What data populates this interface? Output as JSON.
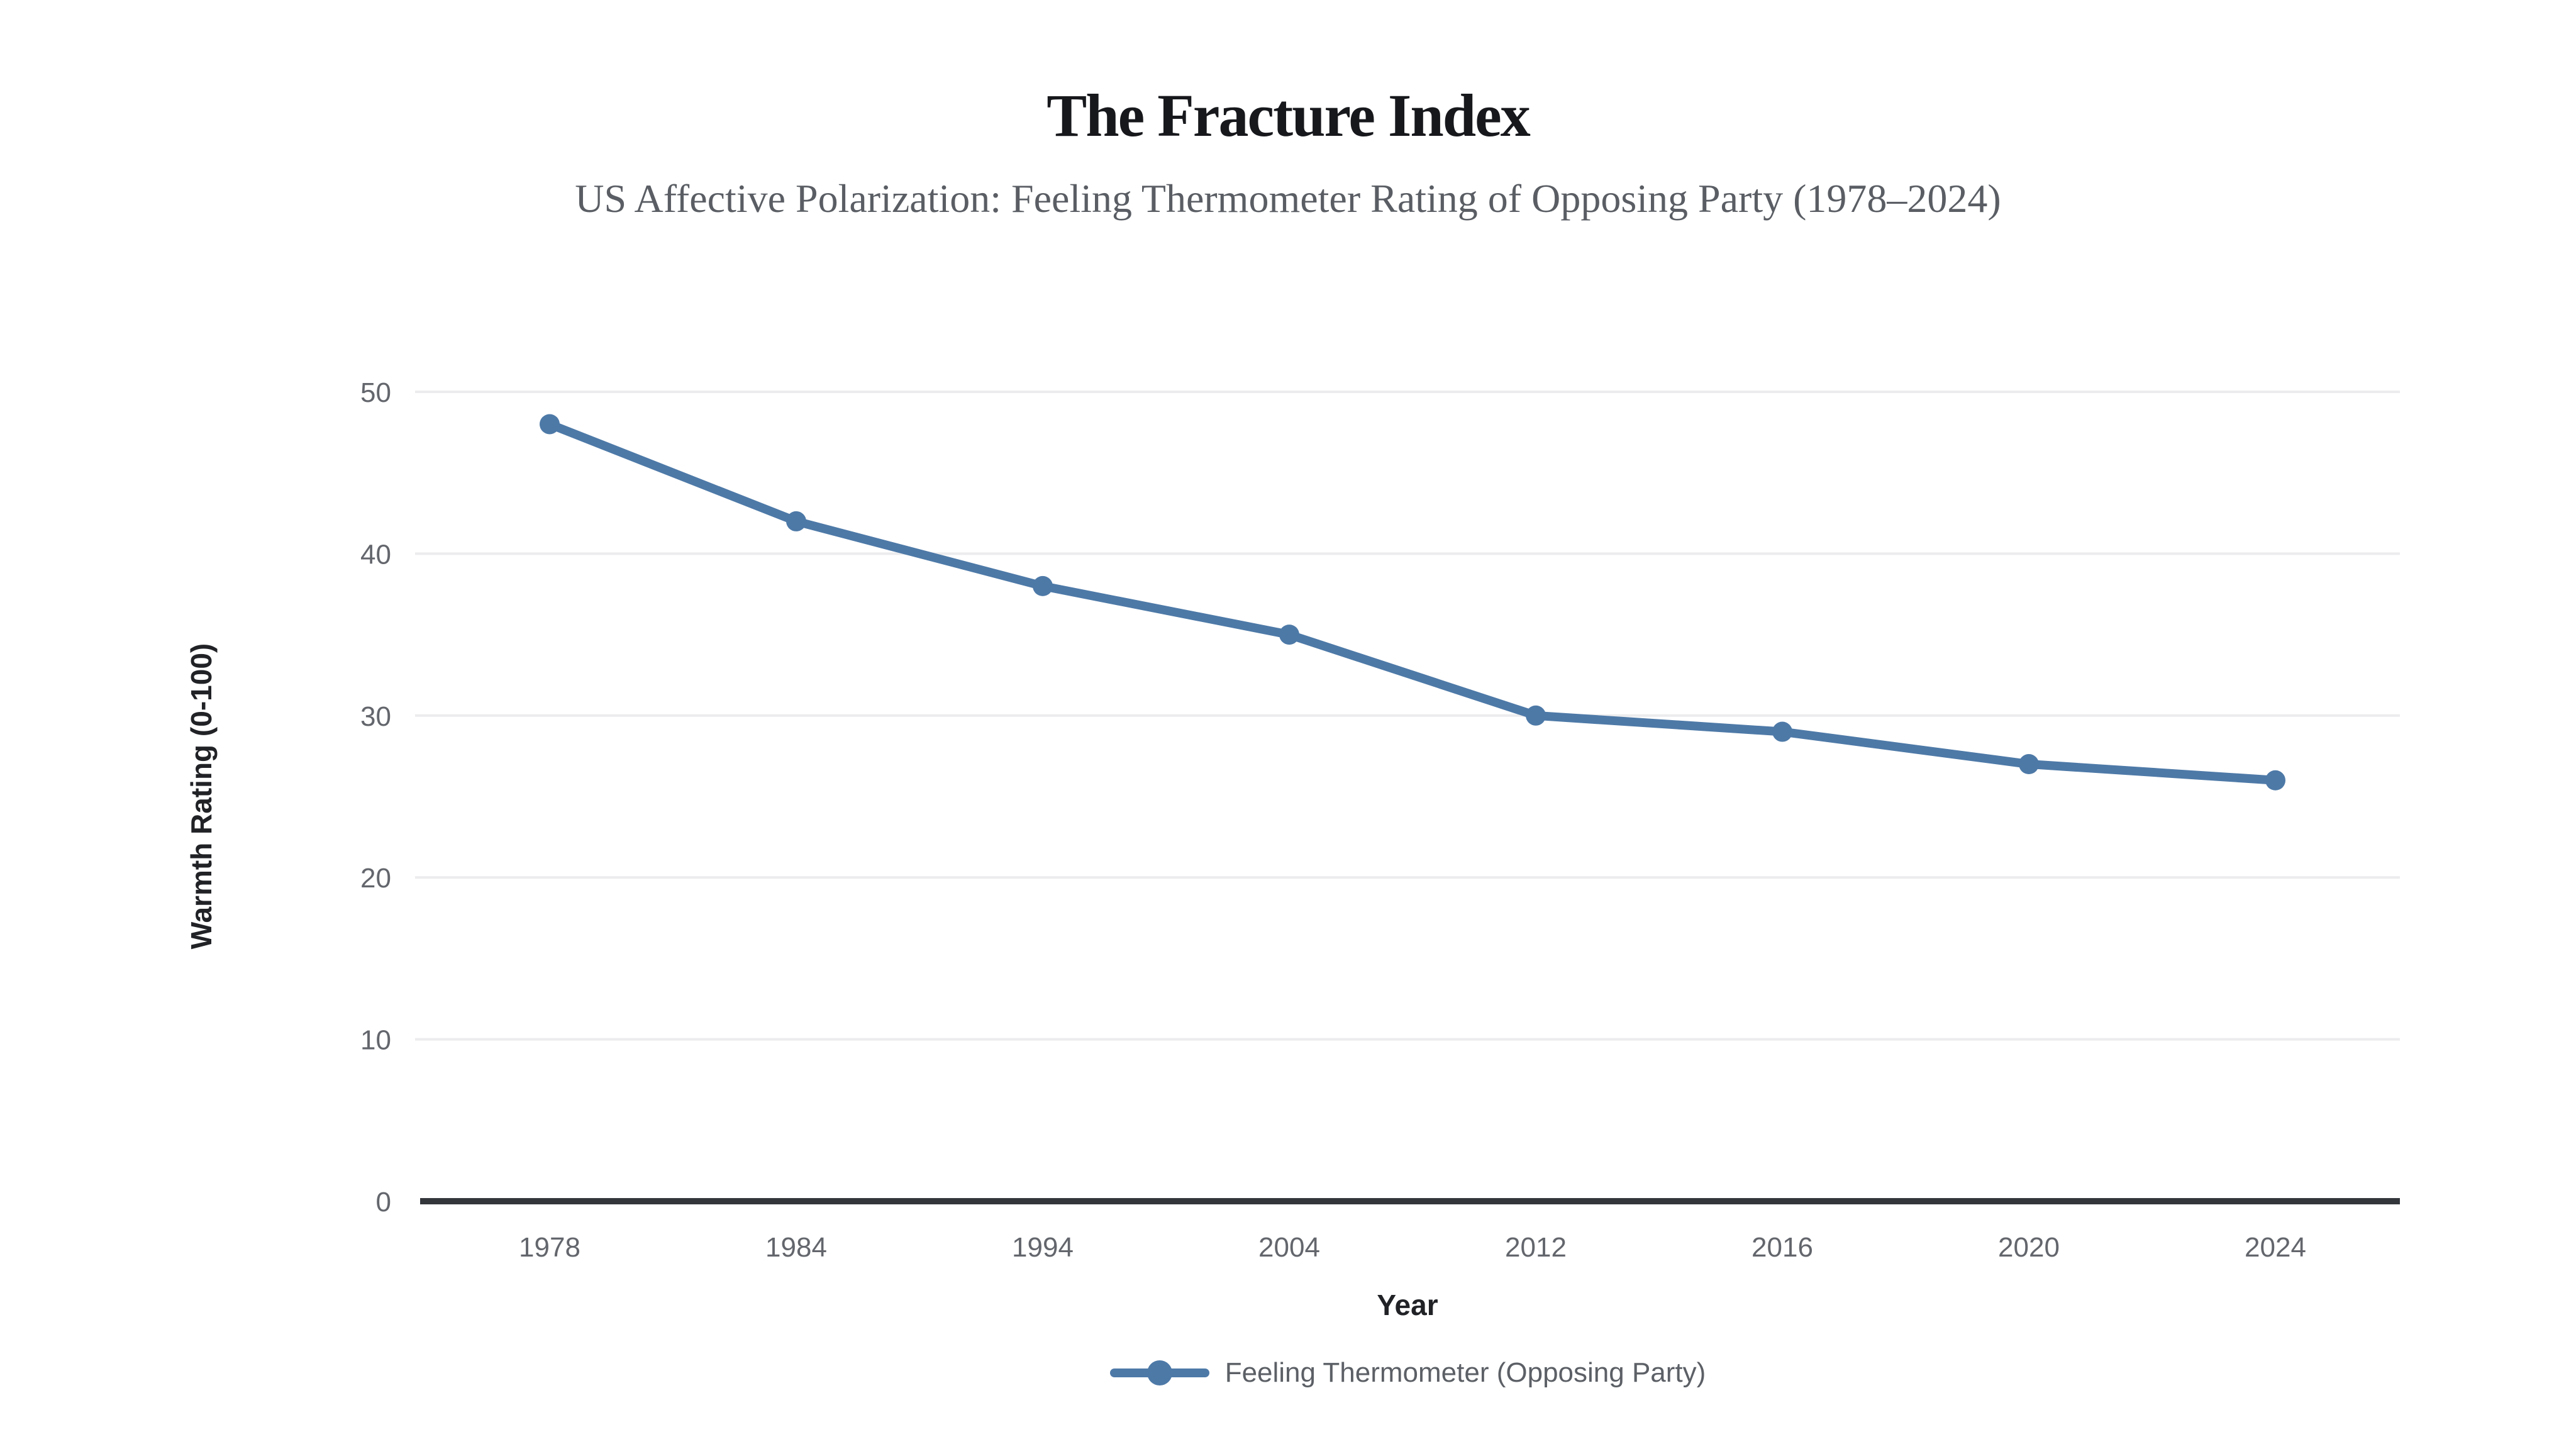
{
  "page": {
    "background": "#ffffff"
  },
  "chart_data": {
    "type": "line",
    "title": "The Fracture Index",
    "subtitle": "US Affective Polarization: Feeling Thermometer Rating of Opposing Party (1978–2024)",
    "xlabel": "Year",
    "ylabel": "Warmth Rating (0-100)",
    "categories": [
      "1978",
      "1984",
      "1994",
      "2004",
      "2012",
      "2016",
      "2020",
      "2024"
    ],
    "series": [
      {
        "name": "Feeling Thermometer (Opposing Party)",
        "values": [
          48,
          42,
          38,
          35,
          30,
          29,
          27,
          26
        ],
        "color": "#4d79a7",
        "marker": "circle"
      }
    ],
    "ylim": [
      0,
      50
    ],
    "yticks": [
      0,
      10,
      20,
      30,
      40,
      50
    ],
    "grid": true,
    "legend_position": "bottom",
    "colors": {
      "line": "#4d79a7",
      "grid": "#ececee",
      "axis": "#33363b",
      "tick_text": "#63666c",
      "title_text": "#17181c",
      "subtitle_text": "#5a5e64",
      "axis_label_text": "#202226",
      "legend_text": "#5c6066"
    }
  }
}
